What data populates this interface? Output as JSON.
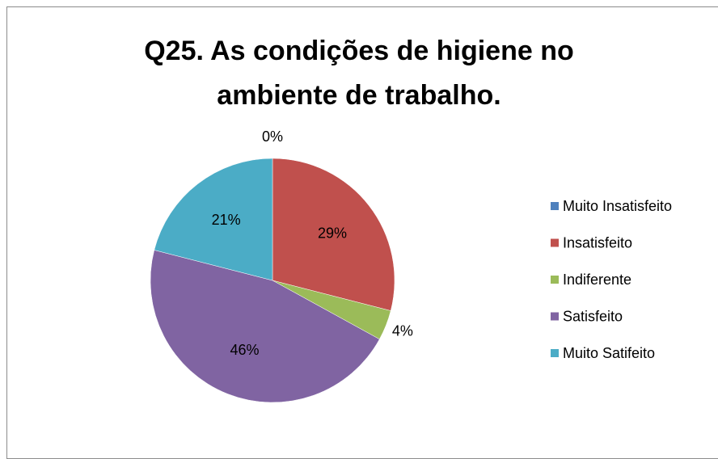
{
  "chart_data": {
    "type": "pie",
    "title": "Q25. As condições de higiene no ambiente de trabalho.",
    "categories": [
      "Muito Insatisfeito",
      "Insatisfeito",
      "Indiferente",
      "Satisfeito",
      "Muito Satifeito"
    ],
    "values": [
      0,
      29,
      4,
      46,
      21
    ],
    "value_labels": [
      "0%",
      "29%",
      "4%",
      "46%",
      "21%"
    ],
    "colors": [
      "#4f81bd",
      "#c0504d",
      "#9bbb59",
      "#8064a2",
      "#4bacc6"
    ],
    "legend": "right"
  }
}
